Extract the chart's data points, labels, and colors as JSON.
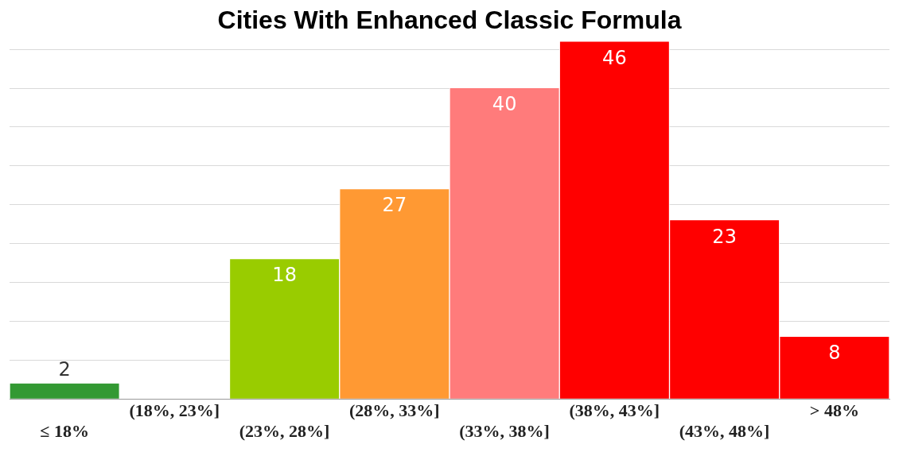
{
  "chart_data": {
    "type": "bar",
    "title": "Cities With Enhanced Classic Formula",
    "categories": [
      "≤ 18%",
      "(18%, 23%]",
      "(23%, 28%]",
      "(28%, 33%]",
      "(33%, 38%]",
      "(38%, 43%]",
      "(43%, 48%]",
      "> 48%"
    ],
    "values": [
      2,
      0,
      18,
      27,
      40,
      46,
      23,
      8
    ],
    "colors": [
      "#339933",
      "#339933",
      "#99cc00",
      "#ff9933",
      "#ff7b7b",
      "#ff0000",
      "#ff0000",
      "#ff0000"
    ],
    "value_labels": [
      "2",
      null,
      "18",
      "27",
      "40",
      "46",
      "23",
      "8"
    ],
    "ylim": [
      0,
      46
    ],
    "yticks": [
      {
        "value": 0,
        "label": null
      },
      {
        "value": 5,
        "label": null
      },
      {
        "value": 10,
        "label": null
      },
      {
        "value": 15,
        "label": null
      },
      {
        "value": 20,
        "label": null
      },
      {
        "value": 25,
        "label": null
      },
      {
        "value": 30,
        "label": null
      },
      {
        "value": 35,
        "label": null
      },
      {
        "value": 40,
        "label": null
      },
      {
        "value": 45,
        "label": null
      }
    ],
    "grid": "y",
    "tick_labels": "x",
    "legend": false
  }
}
